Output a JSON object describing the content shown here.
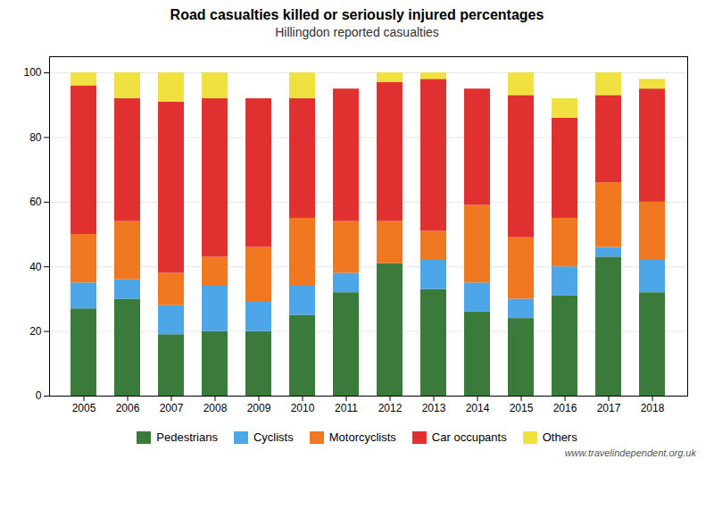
{
  "chart_data": {
    "type": "bar",
    "stacked": true,
    "title": "Road casualties killed or seriously injured percentages",
    "subtitle": "Hillingdon reported casualties",
    "annotations": [
      "www.travelindependent.org.uk"
    ],
    "categories": [
      "2005",
      "2006",
      "2007",
      "2008",
      "2009",
      "2010",
      "2011",
      "2012",
      "2013",
      "2014",
      "2015",
      "2016",
      "2017",
      "2018"
    ],
    "series": [
      {
        "name": "Pedestrians",
        "color": "#3a7a3a",
        "values": [
          27,
          30,
          19,
          20,
          20,
          25,
          32,
          41,
          33,
          26,
          24,
          31,
          43,
          32
        ]
      },
      {
        "name": "Cyclists",
        "color": "#4da6e8",
        "values": [
          8,
          6,
          9,
          14,
          9,
          9,
          6,
          0,
          9,
          9,
          6,
          9,
          3,
          10
        ]
      },
      {
        "name": "Motorcyclists",
        "color": "#f07820",
        "values": [
          15,
          18,
          10,
          9,
          17,
          21,
          16,
          13,
          9,
          24,
          19,
          15,
          20,
          18
        ]
      },
      {
        "name": "Car occupants",
        "color": "#e03030",
        "values": [
          46,
          38,
          53,
          49,
          46,
          37,
          41,
          43,
          47,
          36,
          44,
          31,
          27,
          35
        ]
      },
      {
        "name": "Others",
        "color": "#f0e040",
        "values": [
          4,
          8,
          9,
          8,
          0,
          8,
          0,
          3,
          2,
          0,
          7,
          6,
          7,
          3
        ]
      }
    ],
    "ylim": [
      0,
      105
    ],
    "yticks": [
      0,
      20,
      40,
      60,
      80,
      100
    ],
    "grid": true,
    "legend": "bottom"
  }
}
